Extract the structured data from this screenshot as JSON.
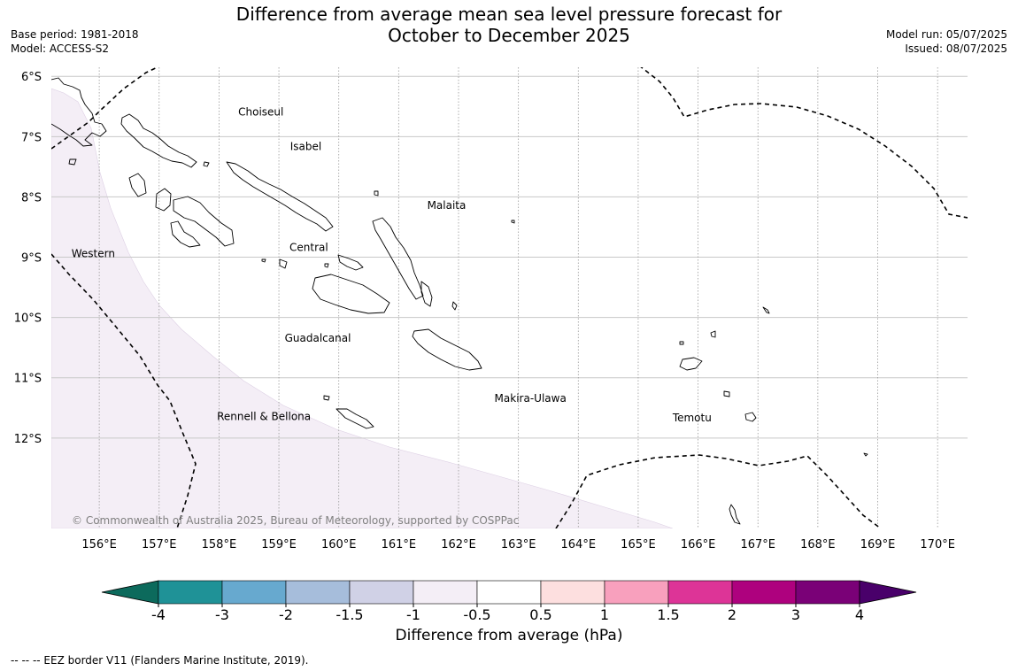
{
  "header": {
    "title_line1": "Difference from average mean sea level pressure forecast for",
    "title_line2": "October to December 2025",
    "base_period": "Base period: 1981-2018",
    "model": "Model: ACCESS-S2",
    "model_run": "Model run: 05/07/2025",
    "issued": "Issued: 08/07/2025"
  },
  "map": {
    "lat_labels": [
      "6°S",
      "7°S",
      "8°S",
      "9°S",
      "10°S",
      "11°S",
      "12°S"
    ],
    "lat_values": [
      -6,
      -7,
      -8,
      -9,
      -10,
      -11,
      -12
    ],
    "lon_labels": [
      "156°E",
      "157°E",
      "158°E",
      "159°E",
      "160°E",
      "161°E",
      "162°E",
      "163°E",
      "164°E",
      "165°E",
      "166°E",
      "167°E",
      "168°E",
      "169°E",
      "170°E"
    ],
    "lon_values": [
      156,
      157,
      158,
      159,
      160,
      161,
      162,
      163,
      164,
      165,
      166,
      167,
      168,
      169,
      170
    ],
    "extent": {
      "lon_min": 155.2,
      "lon_max": 170.5,
      "lat_max": -5.85,
      "lat_min": -13.5
    },
    "provinces": [
      {
        "name": "Choiseul",
        "lon": 158.7,
        "lat": -6.65
      },
      {
        "name": "Isabel",
        "lon": 159.45,
        "lat": -7.22
      },
      {
        "name": "Malaita",
        "lon": 161.8,
        "lat": -8.2
      },
      {
        "name": "Central",
        "lon": 159.5,
        "lat": -8.9
      },
      {
        "name": "Western",
        "lon": 155.9,
        "lat": -9.0
      },
      {
        "name": "Guadalcanal",
        "lon": 159.65,
        "lat": -10.4
      },
      {
        "name": "Makira-Ulawa",
        "lon": 163.2,
        "lat": -11.4
      },
      {
        "name": "Temotu",
        "lon": 165.9,
        "lat": -11.72
      },
      {
        "name": "Rennell & Bellona",
        "lon": 158.75,
        "lat": -11.7
      }
    ],
    "copyright": "© Commonwealth of Australia 2025, Bureau of Meteorology, supported by COSPPac",
    "shaded_anomaly_color": "#f4eef6",
    "eez_line_color": "#000000"
  },
  "colorbar": {
    "ticks": [
      "-4",
      "-3",
      "-2",
      "-1.5",
      "-1",
      "-0.5",
      "0.5",
      "1",
      "1.5",
      "2",
      "3",
      "4"
    ],
    "colors": [
      "#1f9297",
      "#67a9cf",
      "#a6bddb",
      "#d0d1e6",
      "#f4eef6",
      "#ffffff",
      "#fddfdf",
      "#f8a0bd",
      "#dd3497",
      "#ae017e",
      "#7a0177"
    ],
    "low_extend_color": "#0c6a5c",
    "high_extend_color": "#49006a",
    "label": "Difference from average (hPa)"
  },
  "footnote": "--  --  -- EEZ border V11 (Flanders Marine Institute, 2019)."
}
